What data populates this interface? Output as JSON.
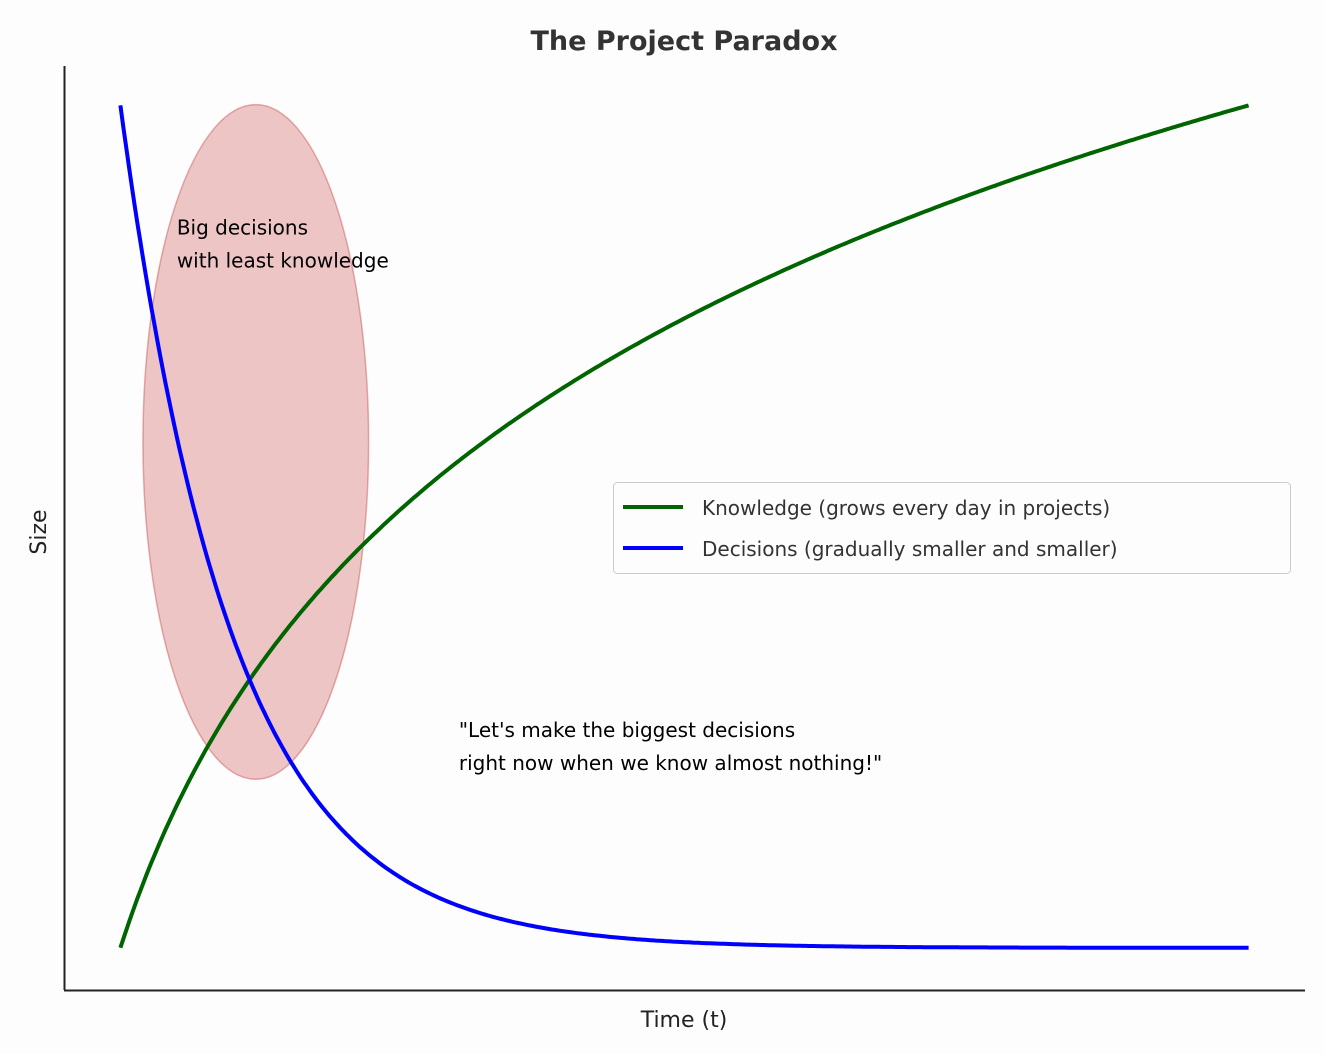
{
  "chart_data": {
    "type": "line",
    "title": "The Project Paradox",
    "xlabel": "Time (t)",
    "ylabel": "Size",
    "xlim": [
      -0.5,
      10.5
    ],
    "ylim": [
      -0.12,
      2.51
    ],
    "x_ticks_shown": false,
    "y_ticks_shown": false,
    "grid": false,
    "legend_position": "center-right",
    "series": [
      {
        "name": "Knowledge (grows every day in projects)",
        "color": "#006400",
        "formula": "log(1+t)",
        "x": [
          0,
          0.5,
          1,
          1.5,
          2,
          3,
          4,
          5,
          6,
          7,
          8,
          9,
          10
        ],
        "values": [
          0,
          0.405,
          0.693,
          0.916,
          1.099,
          1.386,
          1.609,
          1.792,
          1.946,
          2.079,
          2.197,
          2.303,
          2.398
        ]
      },
      {
        "name": "Decisions (gradually smaller and smaller)",
        "color": "#0000ff",
        "formula": "log(11)*exp(-t)",
        "x": [
          0,
          0.5,
          1,
          1.5,
          2,
          3,
          4,
          5,
          6,
          7,
          8,
          9,
          10
        ],
        "values": [
          2.398,
          1.455,
          0.882,
          0.535,
          0.325,
          0.119,
          0.044,
          0.016,
          0.006,
          0.002,
          0.001,
          0.0003,
          0.0001
        ]
      }
    ],
    "highlight_ellipse": {
      "center": [
        1.2,
        1.44
      ],
      "half_width": 1.0,
      "half_height": 0.96,
      "color": "#cd5c5c",
      "opacity": 0.35
    },
    "annotations": [
      {
        "lines": [
          "Big decisions",
          "with least knowledge"
        ],
        "x": 0.5,
        "y": 2.03
      },
      {
        "lines": [
          "\"Let's make the biggest decisions",
          "right now when we know almost nothing!\""
        ],
        "x": 3.0,
        "y": 0.6
      }
    ]
  }
}
